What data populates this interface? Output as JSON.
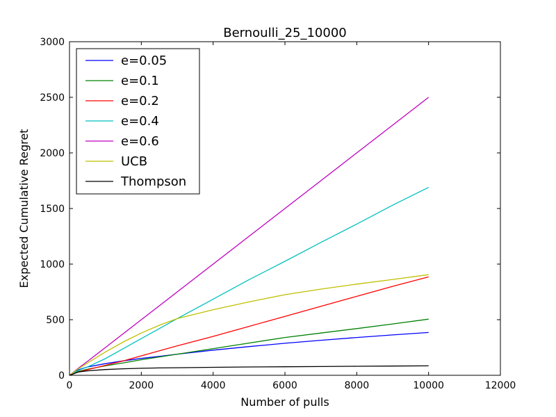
{
  "chart_data": {
    "type": "line",
    "title": "Bernoulli_25_10000",
    "xlabel": "Number of pulls",
    "ylabel": "Expected Cumulative Regret",
    "xlim": [
      0,
      12000
    ],
    "ylim": [
      0,
      3000
    ],
    "xticks": [
      0,
      2000,
      4000,
      6000,
      8000,
      10000,
      12000
    ],
    "yticks": [
      0,
      500,
      1000,
      1500,
      2000,
      2500,
      3000
    ],
    "grid": false,
    "legend_position": "top-left",
    "x": [
      0,
      250,
      500,
      1000,
      1500,
      2000,
      2500,
      3000,
      4000,
      5000,
      6000,
      7000,
      8000,
      9000,
      10000
    ],
    "series": [
      {
        "name": "e=0.05",
        "color": "#0000ff",
        "values": [
          0,
          50,
          75,
          105,
          130,
          152,
          170,
          190,
          226,
          258,
          288,
          315,
          340,
          363,
          385
        ]
      },
      {
        "name": "e=0.1",
        "color": "#008000",
        "values": [
          0,
          35,
          55,
          85,
          112,
          140,
          165,
          190,
          240,
          290,
          340,
          380,
          420,
          462,
          505
        ]
      },
      {
        "name": "e=0.2",
        "color": "#ff0000",
        "values": [
          0,
          30,
          50,
          90,
          130,
          175,
          220,
          265,
          350,
          440,
          530,
          620,
          710,
          800,
          885
        ]
      },
      {
        "name": "e=0.4",
        "color": "#00bfbf",
        "values": [
          0,
          45,
          75,
          150,
          240,
          330,
          420,
          510,
          685,
          860,
          1025,
          1195,
          1360,
          1530,
          1690
        ]
      },
      {
        "name": "e=0.6",
        "color": "#bf00bf",
        "values": [
          0,
          65,
          125,
          250,
          375,
          500,
          625,
          750,
          1000,
          1250,
          1500,
          1750,
          2000,
          2250,
          2500
        ]
      },
      {
        "name": "UCB",
        "color": "#bfbf00",
        "values": [
          0,
          60,
          110,
          210,
          300,
          380,
          450,
          510,
          590,
          660,
          725,
          775,
          820,
          862,
          905
        ]
      },
      {
        "name": "Thompson",
        "color": "#000000",
        "values": [
          0,
          30,
          40,
          52,
          59,
          63,
          66,
          68,
          72,
          75,
          77,
          79,
          81,
          83,
          85
        ]
      }
    ]
  }
}
